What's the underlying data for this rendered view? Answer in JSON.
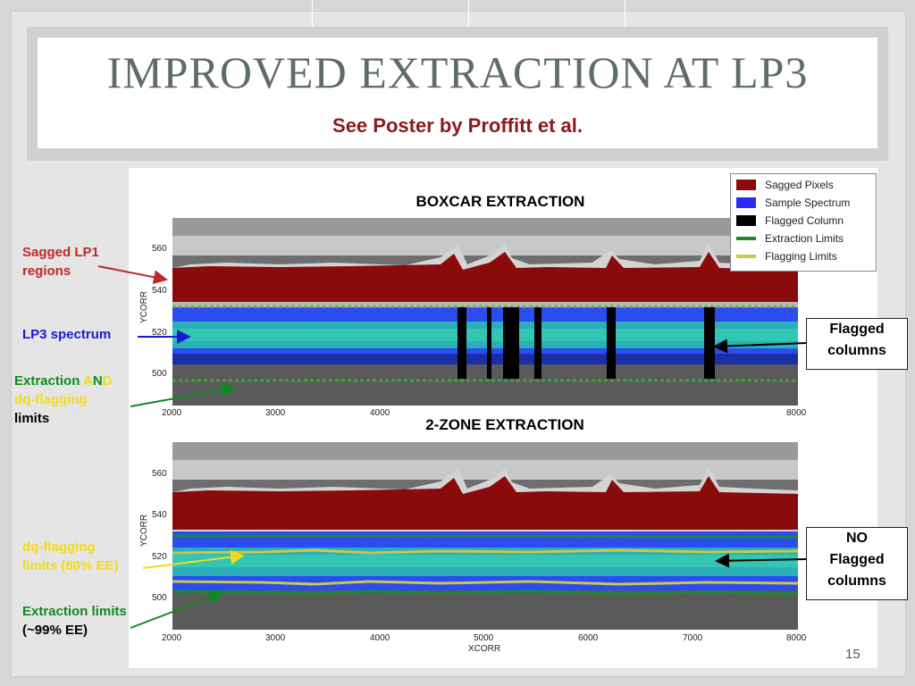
{
  "slide": {
    "title": "IMPROVED EXTRACTION AT LP3",
    "subtitle": "See Poster by Proffitt et al.",
    "page_number": "15"
  },
  "top_plot": {
    "title": "BOXCAR EXTRACTION",
    "ylabel": "YCORR",
    "yticks": [
      "560",
      "540",
      "520",
      "500"
    ],
    "xticks": [
      "2000",
      "3000",
      "4000",
      "8000"
    ]
  },
  "bottom_plot": {
    "title": "2-ZONE EXTRACTION",
    "ylabel": "YCORR",
    "xlabel": "XCORR",
    "yticks": [
      "560",
      "540",
      "520",
      "500"
    ],
    "xticks": [
      "2000",
      "3000",
      "4000",
      "5000",
      "6000",
      "7000",
      "8000"
    ]
  },
  "legend": {
    "items": [
      {
        "label": "Sagged Pixels",
        "color": "#8b0a0a",
        "kind": "box"
      },
      {
        "label": "Sample Spectrum",
        "color": "#2a2aff",
        "kind": "box"
      },
      {
        "label": "Flagged Column",
        "color": "#000000",
        "kind": "box"
      },
      {
        "label": "Extraction Limits",
        "color": "#1e8a2a",
        "kind": "line"
      },
      {
        "label": "Flagging Limits",
        "color": "#c8c84a",
        "kind": "line"
      }
    ]
  },
  "annotations": {
    "sagged_line1": "Sagged LP1",
    "sagged_line2": "regions",
    "lp3": "LP3 spectrum",
    "extraction_word": "Extraction ",
    "and_a": "A",
    "and_n": "N",
    "and_d": "D",
    "dq_flagging": "dq-flagging",
    "limits": "limits",
    "dq_limits_line1": "dq-flagging",
    "dq_limits_line2": "limits (80% EE)",
    "ext_limits_line1": "Extraction limits",
    "ext_limits_line2": "(~99% EE)"
  },
  "callouts": {
    "flagged_line1": "Flagged",
    "flagged_line2": "columns",
    "no_line1": "NO",
    "no_line2": "Flagged",
    "no_line3": "columns"
  },
  "colors": {
    "title": "#5f6e64",
    "subtitle": "#8b1a1a",
    "red": "#c0282a",
    "blue": "#1a1ad6",
    "green": "#0f8a1e",
    "yellow": "#f2dc1a"
  }
}
